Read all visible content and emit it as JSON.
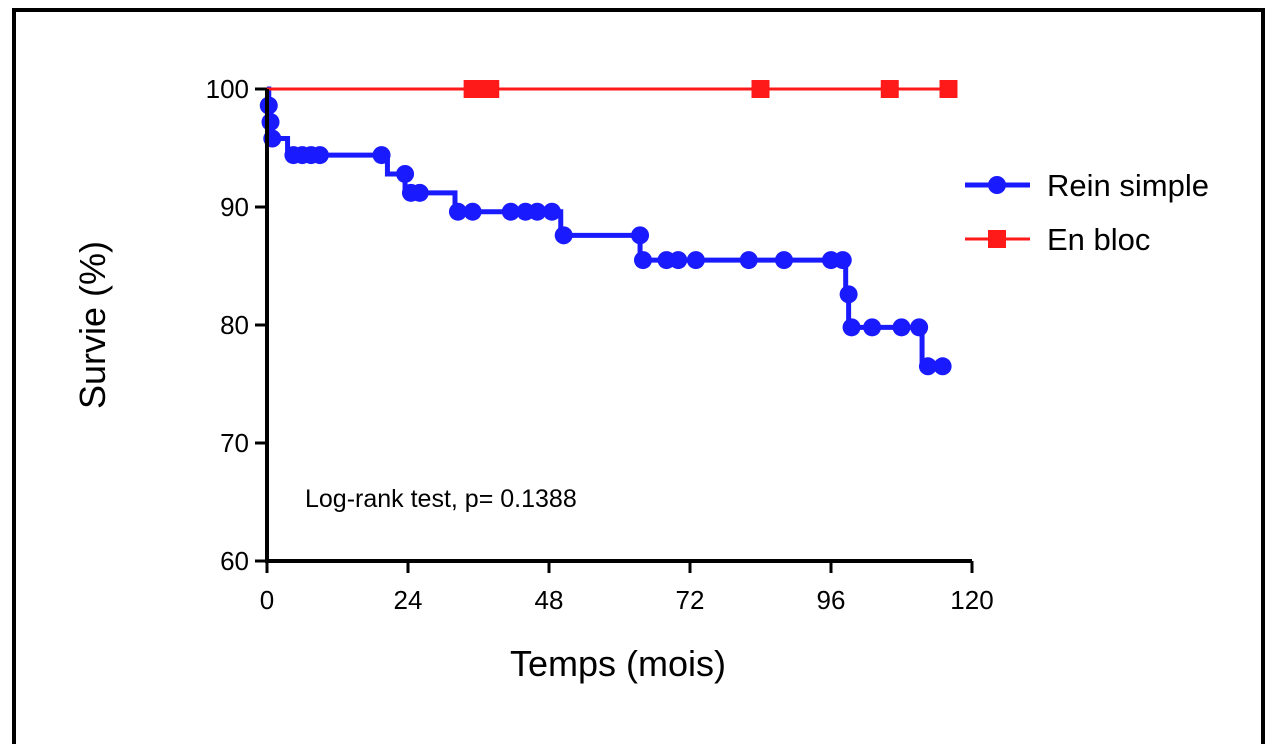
{
  "chart_data": {
    "type": "line",
    "subtype": "kaplan-meier step curve",
    "xlabel": "Temps (mois)",
    "ylabel": "Survie (%)",
    "xlim": [
      0,
      120
    ],
    "ylim": [
      60,
      100
    ],
    "xticks": [
      0,
      24,
      48,
      72,
      96,
      120
    ],
    "yticks": [
      60,
      70,
      80,
      90,
      100
    ],
    "grid": false,
    "legend_position": "right",
    "annotation": "Log-rank test, p= 0.1388",
    "series": [
      {
        "name": "Rein simple",
        "color": "#1a1aff",
        "marker": "circle",
        "steps": [
          [
            0,
            100
          ],
          [
            0.3,
            98.6
          ],
          [
            0.6,
            97.2
          ],
          [
            0.9,
            95.8
          ],
          [
            3.5,
            94.4
          ],
          [
            20.5,
            92.8
          ],
          [
            23.5,
            91.2
          ],
          [
            32,
            89.6
          ],
          [
            50,
            87.6
          ],
          [
            63.5,
            85.5
          ],
          [
            98.5,
            82.6
          ],
          [
            99,
            79.8
          ],
          [
            111.5,
            76.5
          ],
          [
            115,
            76.5
          ]
        ],
        "markers": [
          [
            0.3,
            98.6
          ],
          [
            0.6,
            97.2
          ],
          [
            0.9,
            95.8
          ],
          [
            4.5,
            94.4
          ],
          [
            6,
            94.4
          ],
          [
            7.5,
            94.4
          ],
          [
            9,
            94.4
          ],
          [
            19.5,
            94.4
          ],
          [
            23.5,
            92.8
          ],
          [
            24.5,
            91.2
          ],
          [
            26,
            91.2
          ],
          [
            32.5,
            89.6
          ],
          [
            35,
            89.6
          ],
          [
            41.5,
            89.6
          ],
          [
            44,
            89.6
          ],
          [
            46,
            89.6
          ],
          [
            48.5,
            89.6
          ],
          [
            50.5,
            87.6
          ],
          [
            63.5,
            87.6
          ],
          [
            64,
            85.5
          ],
          [
            68,
            85.5
          ],
          [
            70,
            85.5
          ],
          [
            73,
            85.5
          ],
          [
            82,
            85.5
          ],
          [
            88,
            85.5
          ],
          [
            96,
            85.5
          ],
          [
            98,
            85.5
          ],
          [
            99,
            82.6
          ],
          [
            99.5,
            79.8
          ],
          [
            103,
            79.8
          ],
          [
            108,
            79.8
          ],
          [
            111,
            79.8
          ],
          [
            112.5,
            76.5
          ],
          [
            115,
            76.5
          ]
        ]
      },
      {
        "name": "En bloc",
        "color": "#ff1a1a",
        "marker": "square",
        "steps": [
          [
            0,
            100
          ],
          [
            116,
            100
          ]
        ],
        "markers": [
          [
            35,
            100
          ],
          [
            36.5,
            100
          ],
          [
            38,
            100
          ],
          [
            84,
            100
          ],
          [
            106,
            100
          ],
          [
            116,
            100
          ]
        ]
      }
    ]
  }
}
